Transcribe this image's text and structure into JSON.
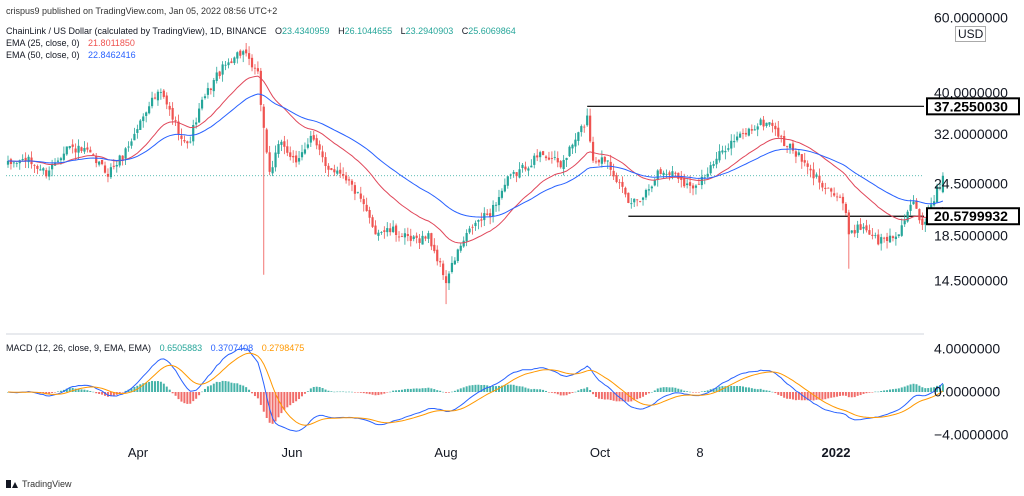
{
  "header": {
    "published": "crispus9 published on TradingView.com, Jan 05, 2022 08:56 UTC+2",
    "symbol": "ChainLink / US Dollar (calculated by TradingView), 1D, BINANCE",
    "ohlc": {
      "o_label": "O",
      "o": "23.4340959",
      "h_label": "H",
      "h": "26.1044655",
      "l_label": "L",
      "l": "23.2940903",
      "c_label": "C",
      "c": "25.6069864"
    },
    "ema25_label": "EMA (25, close, 0)",
    "ema25_value": "21.8011850",
    "ema50_label": "EMA (50, close, 0)",
    "ema50_value": "22.8462416",
    "macd_label": "MACD (12, 26, close, 9, EMA, EMA)",
    "macd_hist": "0.6505883",
    "macd_line": "0.3707408",
    "macd_signal": "0.2798475"
  },
  "currency": "USD",
  "branding": "TradingView",
  "colors": {
    "up": "#26a69a",
    "down": "#ef5350",
    "ema25": "#e0475a",
    "ema50": "#2962ff",
    "macd_line": "#2962ff",
    "signal_line": "#ff9800",
    "hist_up": "#26a69a",
    "hist_down": "#ef5350"
  },
  "chart_data": {
    "type": "candlestick",
    "price_axis": {
      "scale": "log",
      "ticks": [
        {
          "value": 60,
          "label": "60.0000000"
        },
        {
          "value": 40,
          "label": "40.0000000"
        },
        {
          "value": 32,
          "label": "32.0000000"
        },
        {
          "value": 24.5,
          "label": "24.5000000"
        },
        {
          "value": 18.5,
          "label": "18.5000000"
        },
        {
          "value": 14.5,
          "label": "14.5000000"
        }
      ],
      "range": [
        11.5,
        62
      ]
    },
    "macd_axis": {
      "ticks": [
        {
          "value": 4,
          "label": "4.0000000"
        },
        {
          "value": 0,
          "label": "0.0000000"
        },
        {
          "value": -4,
          "label": "−4.0000000"
        }
      ],
      "range": [
        -5,
        5
      ]
    },
    "x_axis": {
      "ticks": [
        {
          "label": "Apr",
          "bold": false
        },
        {
          "label": "Jun",
          "bold": false
        },
        {
          "label": "Aug",
          "bold": false
        },
        {
          "label": "Oct",
          "bold": false
        },
        {
          "label": "8",
          "bold": false
        },
        {
          "label": "2022",
          "bold": true
        }
      ]
    },
    "levels": [
      {
        "value": 37.255003,
        "label": "37.2550030",
        "from": "2021-09-06",
        "to": "2022-01-15"
      },
      {
        "value": 20.5799932,
        "label": "20.5799932",
        "from": "2021-09-20",
        "to": "2022-01-15"
      }
    ],
    "last_price": 25.6069864,
    "anchors": [
      {
        "date": "2021-02-20",
        "close": 27
      },
      {
        "date": "2021-02-27",
        "close": 28
      },
      {
        "date": "2021-03-06",
        "close": 26
      },
      {
        "date": "2021-03-13",
        "close": 30
      },
      {
        "date": "2021-03-20",
        "close": 29
      },
      {
        "date": "2021-03-27",
        "close": 26
      },
      {
        "date": "2021-04-01",
        "close": 28.5
      },
      {
        "date": "2021-04-05",
        "close": 32
      },
      {
        "date": "2021-04-10",
        "close": 38
      },
      {
        "date": "2021-04-14",
        "close": 40
      },
      {
        "date": "2021-04-18",
        "close": 35
      },
      {
        "date": "2021-04-23",
        "close": 30
      },
      {
        "date": "2021-04-28",
        "close": 38
      },
      {
        "date": "2021-05-03",
        "close": 44
      },
      {
        "date": "2021-05-09",
        "close": 49
      },
      {
        "date": "2021-05-12",
        "close": 50
      },
      {
        "date": "2021-05-14",
        "close": 47
      },
      {
        "date": "2021-05-17",
        "close": 44
      },
      {
        "date": "2021-05-19",
        "close": 33
      },
      {
        "date": "2021-05-21",
        "close": 26
      },
      {
        "date": "2021-05-25",
        "close": 31
      },
      {
        "date": "2021-05-30",
        "close": 27
      },
      {
        "date": "2021-06-04",
        "close": 32
      },
      {
        "date": "2021-06-09",
        "close": 27
      },
      {
        "date": "2021-06-15",
        "close": 26
      },
      {
        "date": "2021-06-20",
        "close": 23
      },
      {
        "date": "2021-06-26",
        "close": 19
      },
      {
        "date": "2021-07-02",
        "close": 19
      },
      {
        "date": "2021-07-08",
        "close": 18
      },
      {
        "date": "2021-07-14",
        "close": 18.5
      },
      {
        "date": "2021-07-20",
        "close": 14.5
      },
      {
        "date": "2021-07-24",
        "close": 17
      },
      {
        "date": "2021-07-29",
        "close": 19.5
      },
      {
        "date": "2021-08-04",
        "close": 21
      },
      {
        "date": "2021-08-10",
        "close": 25
      },
      {
        "date": "2021-08-16",
        "close": 27
      },
      {
        "date": "2021-08-22",
        "close": 29
      },
      {
        "date": "2021-08-28",
        "close": 27
      },
      {
        "date": "2021-09-03",
        "close": 32
      },
      {
        "date": "2021-09-06",
        "close": 35
      },
      {
        "date": "2021-09-08",
        "close": 28
      },
      {
        "date": "2021-09-13",
        "close": 28
      },
      {
        "date": "2021-09-20",
        "close": 22
      },
      {
        "date": "2021-09-25",
        "close": 23
      },
      {
        "date": "2021-09-30",
        "close": 26
      },
      {
        "date": "2021-10-06",
        "close": 26
      },
      {
        "date": "2021-10-11",
        "close": 24
      },
      {
        "date": "2021-10-17",
        "close": 26
      },
      {
        "date": "2021-10-23",
        "close": 30
      },
      {
        "date": "2021-10-29",
        "close": 32
      },
      {
        "date": "2021-11-04",
        "close": 34
      },
      {
        "date": "2021-11-08",
        "close": 34
      },
      {
        "date": "2021-11-11",
        "close": 31
      },
      {
        "date": "2021-11-16",
        "close": 29
      },
      {
        "date": "2021-11-21",
        "close": 26
      },
      {
        "date": "2021-11-27",
        "close": 24
      },
      {
        "date": "2021-12-02",
        "close": 22
      },
      {
        "date": "2021-12-04",
        "close": 19
      },
      {
        "date": "2021-12-09",
        "close": 19.5
      },
      {
        "date": "2021-12-14",
        "close": 18
      },
      {
        "date": "2021-12-20",
        "close": 18.5
      },
      {
        "date": "2021-12-26",
        "close": 22
      },
      {
        "date": "2021-12-29",
        "close": 19.5
      },
      {
        "date": "2022-01-01",
        "close": 22
      },
      {
        "date": "2022-01-05",
        "close": 25.6
      }
    ]
  }
}
